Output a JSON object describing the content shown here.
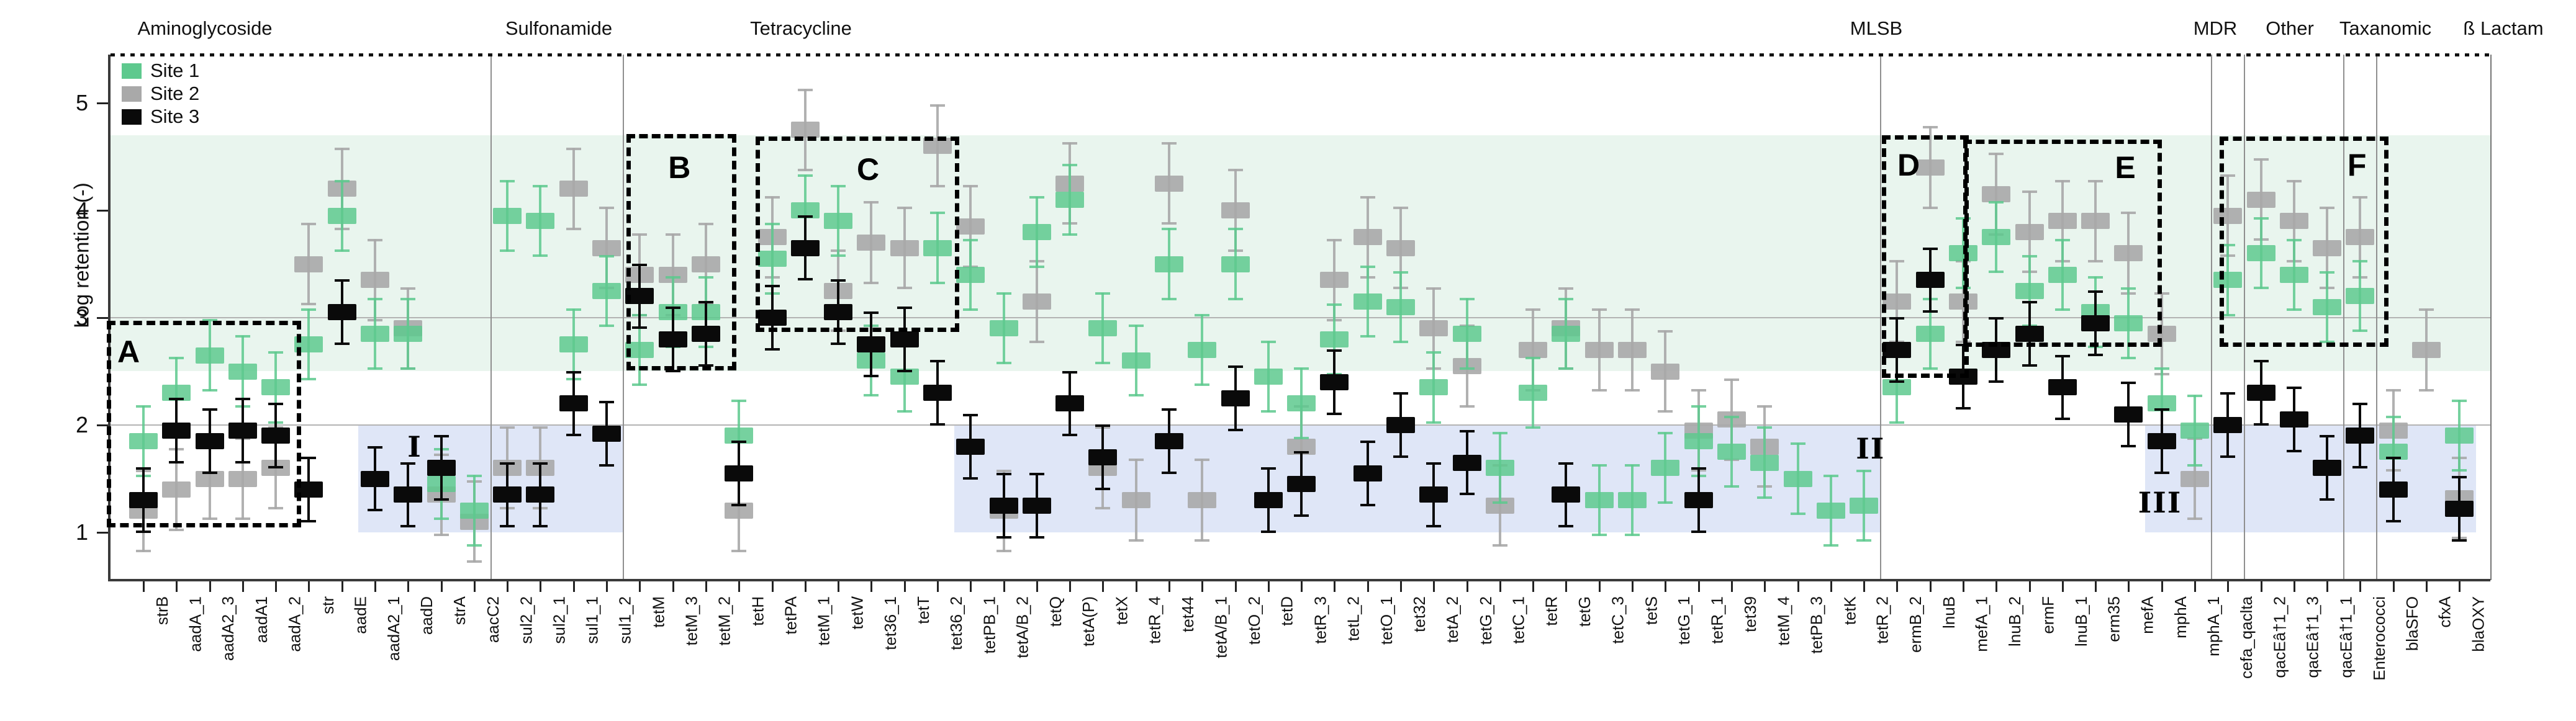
{
  "chart_data": {
    "type": "scatter",
    "title": "",
    "xlabel": "",
    "ylabel": "Log retention (-)",
    "ylim": [
      0.55,
      5.45
    ],
    "yticks": [
      1,
      2,
      3,
      4,
      5
    ],
    "grid_y_values": [
      2,
      3
    ],
    "legend_position": "top-left",
    "legend": [
      {
        "label": "Site 1",
        "color": "#5ec98e"
      },
      {
        "label": "Site 2",
        "color": "#a9a9a9"
      },
      {
        "label": "Site 3",
        "color": "#0a0a0a"
      }
    ],
    "categories": [
      "strB",
      "aadA_1",
      "aadA2_3",
      "aadA1",
      "aadA_2",
      "str",
      "aadE",
      "aadA2_1",
      "aadD",
      "strA",
      "aacC2",
      "sul2_2",
      "sul2_1",
      "sul1_1",
      "sul1_2",
      "tetM",
      "tetM_3",
      "tetM_2",
      "tetH",
      "tetPA",
      "tetM_1",
      "tetW",
      "tet36_1",
      "tetT",
      "tet36_2",
      "tetPB_1",
      "tetA/B_2",
      "tetQ",
      "tetA(P)",
      "tetX",
      "tetR_4",
      "tet44",
      "tetA/B_1",
      "tetO_2",
      "tetD",
      "tetR_3",
      "tetL_2",
      "tetO_1",
      "tet32",
      "tetA_2",
      "tetG_2",
      "tetC_1",
      "tetR",
      "tetG",
      "tetC_3",
      "tetS",
      "tetG_1",
      "tetR_1",
      "tet39",
      "tetM_4",
      "tetPB_3",
      "tetK",
      "tetR_2",
      "ermB_2",
      "lnuB",
      "mefA_1",
      "lnuB_2",
      "ermF",
      "lnuB_1",
      "erm35",
      "mefA",
      "mphA",
      "mphA_1",
      "cefa_qaclta",
      "qacEâ†1_2",
      "qacEâ†1_3",
      "qacEâ†1_1",
      "Enterococci",
      "blaSFO",
      "cfxA",
      "blaOXY"
    ],
    "series": [
      {
        "name": "Site 2",
        "color": "#a9a9a9",
        "err": 0.38,
        "values": [
          1.2,
          1.4,
          1.5,
          1.5,
          1.6,
          3.5,
          4.2,
          3.35,
          2.9,
          1.35,
          1.1,
          1.6,
          1.6,
          4.2,
          3.65,
          3.4,
          3.4,
          3.5,
          1.2,
          3.75,
          4.75,
          3.25,
          3.7,
          3.65,
          4.6,
          3.85,
          1.2,
          3.15,
          4.25,
          1.6,
          1.3,
          4.25,
          1.3,
          4.0,
          null,
          1.8,
          3.35,
          3.75,
          3.65,
          2.9,
          2.55,
          1.25,
          2.7,
          2.9,
          2.7,
          2.7,
          2.5,
          1.95,
          2.05,
          1.8,
          null,
          null,
          null,
          3.15,
          4.4,
          3.15,
          4.15,
          3.8,
          3.9,
          3.9,
          3.6,
          2.85,
          1.5,
          3.95,
          4.1,
          3.9,
          3.65,
          3.75,
          1.95,
          2.7,
          1.32
        ]
      },
      {
        "name": "Site 1",
        "color": "#5ec98e",
        "err": 0.33,
        "values": [
          1.85,
          2.3,
          2.65,
          2.5,
          2.35,
          2.75,
          3.95,
          2.85,
          2.85,
          1.45,
          1.2,
          3.95,
          3.9,
          2.75,
          3.25,
          2.7,
          3.05,
          3.05,
          1.9,
          3.55,
          4.0,
          3.9,
          2.6,
          2.45,
          3.65,
          3.4,
          2.9,
          3.8,
          4.1,
          2.9,
          2.6,
          3.5,
          2.7,
          3.5,
          2.45,
          2.2,
          2.8,
          3.15,
          3.1,
          2.35,
          2.85,
          1.6,
          2.3,
          2.85,
          1.3,
          1.3,
          1.6,
          1.85,
          1.75,
          1.65,
          1.5,
          1.2,
          1.25,
          2.35,
          2.85,
          3.6,
          3.75,
          3.25,
          3.4,
          3.05,
          2.95,
          2.2,
          1.95,
          3.35,
          3.6,
          3.4,
          3.1,
          3.2,
          1.75,
          null,
          1.9
        ]
      },
      {
        "name": "Site 3",
        "color": "#0a0a0a",
        "err": 0.3,
        "values": [
          1.3,
          1.95,
          1.85,
          1.95,
          1.9,
          1.4,
          3.05,
          1.5,
          1.35,
          1.6,
          null,
          1.35,
          1.35,
          2.2,
          1.92,
          3.2,
          2.8,
          2.85,
          1.55,
          3.0,
          3.65,
          3.05,
          2.75,
          2.8,
          2.3,
          1.8,
          1.25,
          1.25,
          2.2,
          1.7,
          null,
          1.85,
          null,
          2.25,
          1.3,
          1.45,
          2.4,
          1.55,
          2.0,
          1.35,
          1.65,
          null,
          null,
          1.35,
          null,
          null,
          null,
          1.3,
          null,
          null,
          null,
          null,
          null,
          2.7,
          3.35,
          2.45,
          2.7,
          2.85,
          2.35,
          2.95,
          2.1,
          1.85,
          null,
          2.0,
          2.3,
          2.05,
          1.6,
          1.9,
          1.4,
          null,
          1.22
        ]
      }
    ],
    "top_groups": [
      {
        "label": "Aminoglycoside",
        "center_x": 330
      },
      {
        "label": "Sulfonamide",
        "center_x": 900
      },
      {
        "label": "Tetracycline",
        "center_x": 1290
      },
      {
        "label": "MLSB",
        "center_x": 3022
      },
      {
        "label": "MDR",
        "center_x": 3568
      },
      {
        "label": "Other",
        "center_x": 3688
      },
      {
        "label": "Taxanomic",
        "center_x": 3842
      },
      {
        "label": "ß Lactam",
        "center_x": 4032
      }
    ],
    "group_dividers_after_index": [
      10,
      14,
      52,
      62,
      63,
      66,
      67
    ],
    "shaded_bands": {
      "green": {
        "color": "#e9f5ee",
        "y_from": 2.5,
        "y_to": 4.7,
        "full_width": true
      },
      "blue": {
        "color": "#dfe6f7",
        "y_from": 1.0,
        "y_to": 2.0,
        "segments": [
          {
            "i_from": 6.5,
            "i_to": 14.5
          },
          {
            "i_from": 24.5,
            "i_to": 52.5
          },
          {
            "i_from": 60.5,
            "i_to": 70.5
          }
        ]
      }
    },
    "annotation_boxes": [
      {
        "label": "A",
        "i_from": -1.1,
        "i_to": 4.5,
        "v_from": 1.13,
        "v_to": 2.97,
        "label_i": -0.45,
        "label_v": 2.68
      },
      {
        "label": "B",
        "i_from": 14.6,
        "i_to": 17.65,
        "v_from": 2.59,
        "v_to": 4.71,
        "label_i": 16.2,
        "label_v": 4.4
      },
      {
        "label": "C",
        "i_from": 18.5,
        "i_to": 24.4,
        "v_from": 2.95,
        "v_to": 4.69,
        "label_i": 21.9,
        "label_v": 4.38
      },
      {
        "label": "D",
        "i_from": 52.55,
        "i_to": 54.9,
        "v_from": 2.52,
        "v_to": 4.7,
        "label_i": 53.35,
        "label_v": 4.42
      },
      {
        "label": "E",
        "i_from": 55.0,
        "i_to": 60.75,
        "v_from": 2.81,
        "v_to": 4.66,
        "label_i": 59.9,
        "label_v": 4.4
      },
      {
        "label": "F",
        "i_from": 62.75,
        "i_to": 67.6,
        "v_from": 2.81,
        "v_to": 4.69,
        "label_i": 66.9,
        "label_v": 4.42
      }
    ],
    "region_labels": [
      {
        "label": "I",
        "i": 8.2,
        "v": 1.8
      },
      {
        "label": "II",
        "i": 52.2,
        "v": 1.78
      },
      {
        "label": "III",
        "i": 60.95,
        "v": 1.28
      }
    ]
  }
}
